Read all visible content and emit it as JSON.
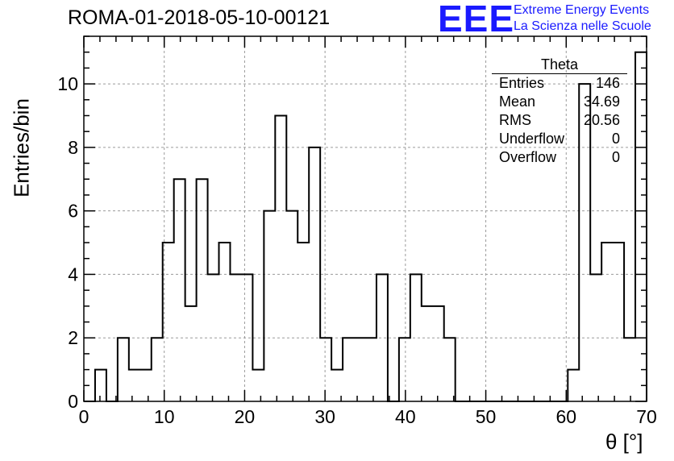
{
  "header": {
    "title": "ROMA-01-2018-05-10-00121"
  },
  "logo": {
    "mark": "EEE",
    "line1": "Extreme Energy Events",
    "line2": "La Scienza nelle Scuole",
    "color": "#1a1aff"
  },
  "stats_box": {
    "title": "Theta",
    "rows": [
      {
        "key": "Entries",
        "value": "146"
      },
      {
        "key": "Mean",
        "value": "34.69"
      },
      {
        "key": "RMS",
        "value": "20.56"
      },
      {
        "key": "Underflow",
        "value": "0"
      },
      {
        "key": "Overflow",
        "value": "0"
      }
    ]
  },
  "chart_data": {
    "type": "bar",
    "style": "step histogram",
    "xlabel": "θ [°]",
    "ylabel": "Entries/bin",
    "xlim": [
      0,
      70
    ],
    "ylim": [
      0,
      11.5
    ],
    "x_ticks": [
      "0",
      "10",
      "20",
      "30",
      "40",
      "50",
      "60",
      "70"
    ],
    "y_ticks": [
      "0",
      "2",
      "4",
      "6",
      "8",
      "10"
    ],
    "grid": true,
    "bin_width": 1.4,
    "bin_start": 0,
    "values": [
      0,
      1,
      0,
      2,
      1,
      1,
      2,
      5,
      7,
      3,
      7,
      4,
      5,
      4,
      4,
      1,
      6,
      9,
      6,
      5,
      8,
      2,
      1,
      2,
      2,
      2,
      4,
      0,
      2,
      4,
      3,
      3,
      2,
      0,
      0,
      0,
      0,
      0,
      0,
      0,
      0,
      0,
      0,
      1,
      10,
      4,
      5,
      5,
      2,
      11
    ]
  }
}
